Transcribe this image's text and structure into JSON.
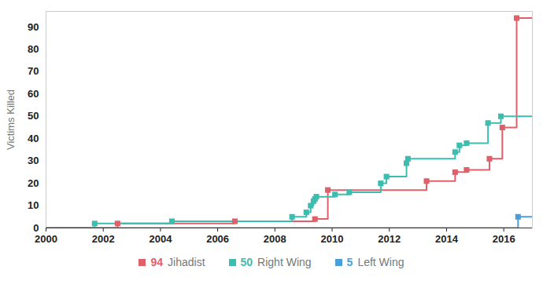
{
  "chart_data": {
    "type": "line",
    "line_style": "step",
    "marker": "square",
    "y_label": "Victims Killed",
    "xlim": [
      2000,
      2017
    ],
    "xticks": [
      2000,
      2002,
      2004,
      2006,
      2008,
      2010,
      2012,
      2014,
      2016
    ],
    "ylim": [
      0,
      97
    ],
    "yticks": [
      0,
      10,
      20,
      30,
      40,
      50,
      60,
      70,
      80,
      90
    ],
    "grid": false,
    "legend": "bottom",
    "series": [
      {
        "name": "Jihadist",
        "color": "#e0606a",
        "total": 94,
        "x": [
          2002.5,
          2006.6,
          2009.4,
          2009.85,
          2013.3,
          2014.3,
          2014.7,
          2015.5,
          2015.95,
          2016.45
        ],
        "values": [
          2,
          3,
          4,
          17,
          21,
          25,
          26,
          31,
          45,
          94
        ]
      },
      {
        "name": "Right Wing",
        "color": "#3dbdb0",
        "total": 50,
        "x": [
          2001.7,
          2004.4,
          2008.6,
          2009.1,
          2009.25,
          2009.35,
          2009.4,
          2009.45,
          2010.1,
          2010.6,
          2011.7,
          2011.9,
          2012.6,
          2012.65,
          2014.3,
          2014.45,
          2014.7,
          2015.45,
          2015.9
        ],
        "values": [
          2,
          3,
          5,
          7,
          10,
          12,
          13,
          14,
          15,
          16,
          20,
          23,
          29,
          31,
          34,
          37,
          38,
          47,
          50
        ]
      },
      {
        "name": "Left Wing",
        "color": "#4a9fd8",
        "total": 5,
        "x": [
          2016.5
        ],
        "values": [
          5
        ]
      }
    ]
  }
}
